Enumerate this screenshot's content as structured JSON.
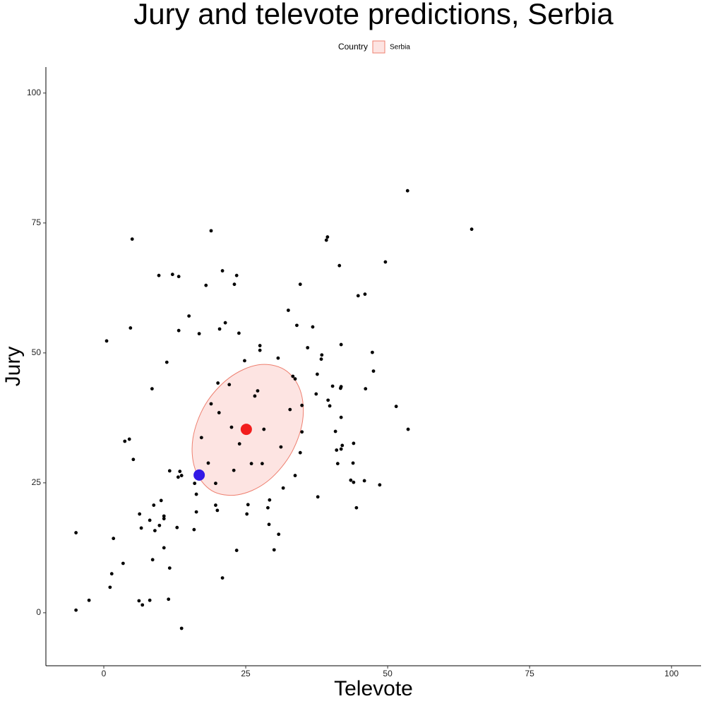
{
  "chart_data": {
    "type": "scatter",
    "title": "Jury and televote predictions, Serbia",
    "x_label": "Televote",
    "y_label": "Jury",
    "legend_title": "Country",
    "xlim": [
      -10.2,
      105.2
    ],
    "ylim": [
      -10.2,
      105.0
    ],
    "xticks": [
      0,
      25,
      50,
      75,
      100
    ],
    "yticks": [
      0,
      25,
      50,
      75,
      100
    ],
    "points": {
      "color": "#000000",
      "x": [
        53.5,
        64.8,
        5.0,
        18.9,
        39.4,
        39.2,
        49.6,
        41.5,
        20.9,
        9.7,
        12.1,
        13.2,
        23.4,
        23.0,
        18.0,
        34.6,
        46.0,
        44.8,
        32.5,
        15.0,
        21.4,
        4.7,
        13.2,
        16.8,
        20.4,
        23.8,
        34.0,
        36.8,
        0.5,
        27.5,
        27.5,
        35.9,
        41.8,
        38.3,
        38.4,
        47.3,
        30.7,
        24.8,
        11.1,
        47.5,
        33.3,
        33.7,
        37.6,
        20.1,
        22.1,
        40.3,
        41.8,
        41.7,
        46.1,
        8.5,
        27.1,
        26.6,
        37.4,
        39.5,
        39.8,
        18.9,
        34.9,
        51.5,
        32.8,
        20.3,
        41.8,
        53.6,
        22.5,
        28.2,
        34.9,
        40.8,
        17.2,
        3.7,
        4.5,
        44.0,
        23.9,
        42.0,
        41.8,
        41.0,
        31.2,
        34.6,
        5.2,
        18.4,
        26.0,
        27.9,
        41.2,
        43.9,
        22.9,
        11.6,
        13.4,
        13.7,
        13.1,
        33.7,
        43.5,
        44.0,
        45.9,
        19.7,
        16.0,
        48.6,
        31.6,
        16.3,
        37.7,
        10.1,
        29.2,
        8.8,
        19.7,
        25.4,
        28.9,
        44.5,
        20.0,
        16.3,
        25.2,
        6.3,
        10.6,
        10.6,
        8.1,
        9.8,
        29.1,
        6.6,
        12.9,
        15.9,
        9.0,
        -4.9,
        30.8,
        1.7,
        10.6,
        23.4,
        30.0,
        8.6,
        3.4,
        11.6,
        1.4,
        20.9,
        1.1,
        -2.6,
        6.2,
        8.1,
        11.4,
        6.8,
        -4.9,
        13.7
      ],
      "y": [
        81.2,
        73.8,
        71.9,
        73.5,
        72.3,
        71.7,
        67.5,
        66.8,
        65.8,
        64.9,
        65.1,
        64.7,
        64.9,
        63.2,
        63.0,
        63.2,
        61.3,
        61.0,
        58.2,
        57.1,
        55.8,
        54.8,
        54.3,
        53.7,
        54.6,
        53.8,
        55.3,
        55.0,
        52.3,
        51.4,
        50.5,
        51.0,
        51.6,
        48.8,
        49.6,
        50.1,
        49.0,
        48.5,
        48.2,
        46.5,
        45.5,
        45.0,
        45.9,
        44.2,
        43.9,
        43.6,
        43.5,
        43.2,
        43.1,
        43.1,
        42.7,
        41.7,
        42.1,
        40.9,
        39.8,
        40.2,
        39.9,
        39.7,
        39.1,
        38.5,
        37.6,
        35.3,
        35.7,
        35.3,
        34.8,
        34.9,
        33.7,
        33.0,
        33.4,
        32.6,
        32.5,
        32.2,
        31.5,
        31.3,
        31.9,
        30.8,
        29.5,
        28.8,
        28.7,
        28.7,
        28.7,
        28.8,
        27.4,
        27.3,
        27.2,
        26.4,
        26.1,
        26.4,
        25.5,
        25.1,
        25.4,
        24.9,
        24.9,
        24.6,
        24.0,
        22.8,
        22.3,
        21.6,
        21.7,
        20.7,
        20.7,
        20.8,
        20.2,
        20.2,
        19.7,
        19.4,
        19.0,
        19.0,
        18.6,
        18.1,
        17.8,
        16.8,
        17.0,
        16.3,
        16.4,
        16.0,
        15.8,
        15.4,
        15.1,
        14.3,
        12.5,
        12.0,
        12.1,
        10.2,
        9.5,
        8.6,
        7.5,
        6.7,
        4.9,
        2.4,
        2.3,
        2.4,
        2.6,
        1.5,
        0.5,
        -3.0
      ]
    },
    "series": [
      {
        "name": "Serbia",
        "color": "#ee7f6f",
        "fill": "#fde4e2",
        "x": [
          31.8,
          34.6,
          35.0,
          32.8,
          28.6,
          23.6,
          19.0,
          16.1,
          15.7,
          17.9,
          22.1,
          27.2
        ],
        "y": [
          46.8,
          42.8,
          36.8,
          30.3,
          25.1,
          22.7,
          23.5,
          27.6,
          33.6,
          40.1,
          45.2,
          47.7
        ]
      }
    ],
    "highlights": [
      {
        "x": 25.1,
        "y": 35.3,
        "color": "#f21d1d"
      },
      {
        "x": 16.8,
        "y": 26.5,
        "color": "#3219e6"
      }
    ]
  }
}
